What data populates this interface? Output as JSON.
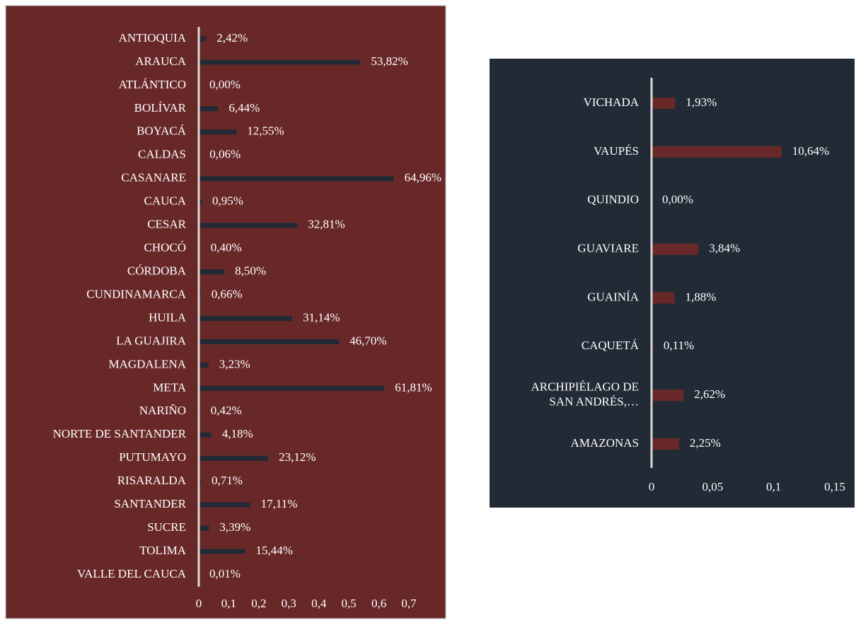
{
  "chart_data": [
    {
      "type": "barh",
      "categories": [
        "ANTIOQUIA",
        "ARAUCA",
        "ATLÁNTICO",
        "BOLÍVAR",
        "BOYACÁ",
        "CALDAS",
        "CASANARE",
        "CAUCA",
        "CESAR",
        "CHOCÓ",
        "CÓRDOBA",
        "CUNDINAMARCA",
        "HUILA",
        "LA GUAJIRA",
        "MAGDALENA",
        "META",
        "NARIÑO",
        "NORTE DE SANTANDER",
        "PUTUMAYO",
        "RISARALDA",
        "SANTANDER",
        "SUCRE",
        "TOLIMA",
        "VALLE DEL CAUCA"
      ],
      "values": [
        0.0242,
        0.5382,
        0,
        0.0644,
        0.1255,
        0.0006,
        0.6496,
        0.0095,
        0.3281,
        0.004,
        0.085,
        0.0066,
        0.3114,
        0.467,
        0.0323,
        0.6181,
        0.0042,
        0.0418,
        0.2312,
        0.0071,
        0.1711,
        0.0339,
        0.1544,
        0.0001
      ],
      "value_labels": [
        "2,42%",
        "53,82%",
        "0,00%",
        "6,44%",
        "12,55%",
        "0,06%",
        "64,96%",
        "0,95%",
        "32,81%",
        "0,40%",
        "8,50%",
        "0,66%",
        "31,14%",
        "46,70%",
        "3,23%",
        "61,81%",
        "0,42%",
        "4,18%",
        "23,12%",
        "0,71%",
        "17,11%",
        "3,39%",
        "15,44%",
        "0,01%"
      ],
      "color": "#222a35",
      "background": "#692828",
      "xlim": [
        0,
        0.7
      ],
      "xticks": [
        0,
        {
          "value": 0.1,
          "label": "0,1"
        },
        {
          "value": 0.2,
          "label": "0,2"
        },
        {
          "value": 0.3,
          "label": "0,3"
        },
        {
          "value": 0.4,
          "label": "0,4"
        },
        {
          "value": 0.5,
          "label": "0,5"
        },
        {
          "value": 0.6,
          "label": "0,6"
        },
        {
          "value": 0.7,
          "label": "0,7"
        }
      ]
    },
    {
      "type": "barh",
      "categories": [
        "VICHADA",
        "VAUPÉS",
        "QUINDIO",
        "GUAVIARE",
        "GUAINÍA",
        "CAQUETÁ",
        "ARCHIPIÉLAGO DE SAN ANDRÉS,…",
        "AMAZONAS"
      ],
      "values": [
        0.0193,
        0.1064,
        0,
        0.0384,
        0.0188,
        0.0011,
        0.0262,
        0.0225
      ],
      "value_labels": [
        "1,93%",
        "10,64%",
        "0,00%",
        "3,84%",
        "1,88%",
        "0,11%",
        "2,62%",
        "2,25%"
      ],
      "color": "#692828",
      "background": "#222a35",
      "xlim": [
        0,
        0.15
      ],
      "xticks": [
        0,
        {
          "value": 0.05,
          "label": "0,05"
        },
        {
          "value": 0.1,
          "label": "0,1"
        },
        {
          "value": 0.15,
          "label": "0,15"
        }
      ]
    }
  ]
}
